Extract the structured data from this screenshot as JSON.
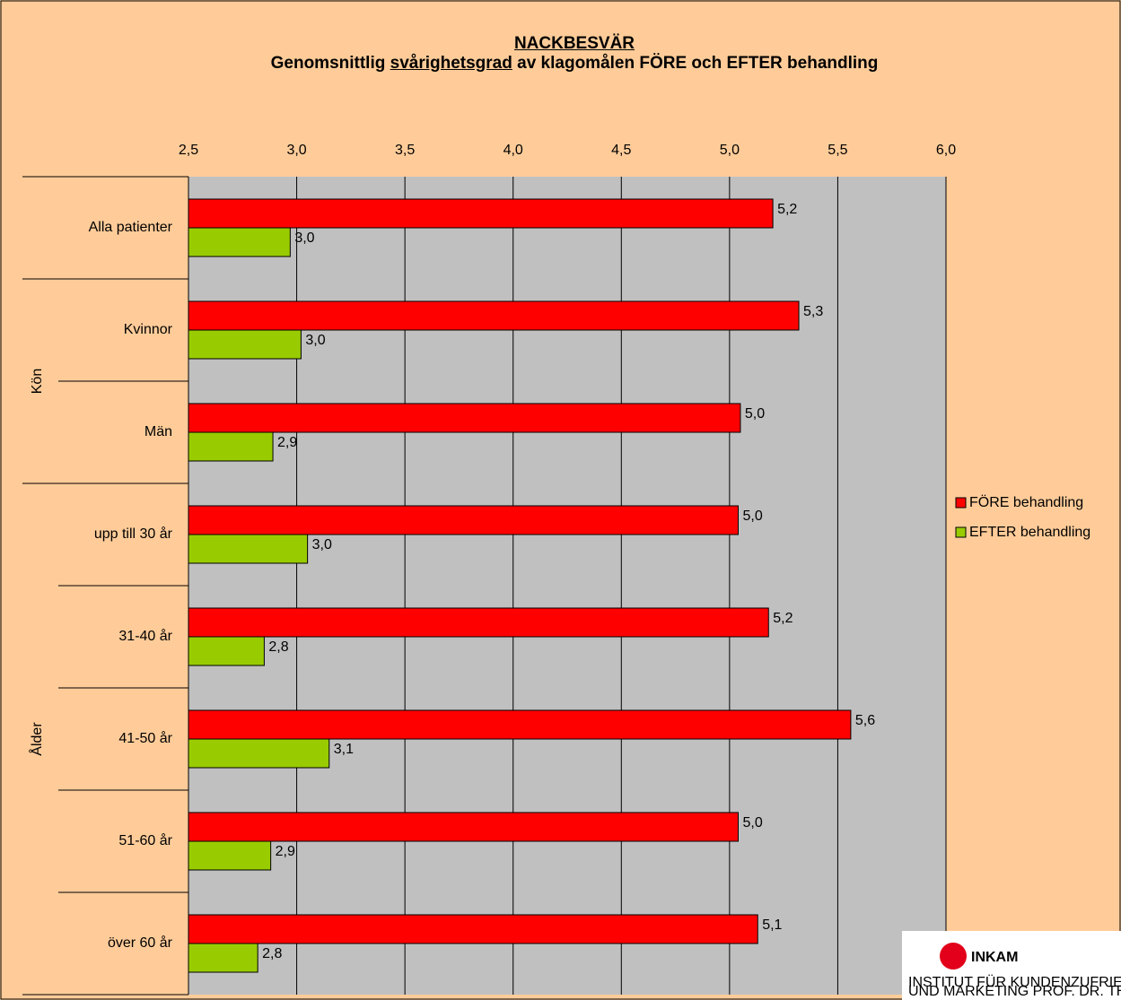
{
  "chart_data": {
    "type": "hbar",
    "title": "NACKBESVÄR",
    "subtitle": "Genomsnittlig svårighetsgrad av klagomålen FÖRE och EFTER behandling",
    "subtitle_emphasis": "svårighetsgrad",
    "categories": [
      "Alla patienter",
      "Kvinnor",
      "Män",
      "upp till 30 år",
      "31-40 år",
      "41-50 år",
      "51-60 år",
      "över 60 år"
    ],
    "category_groups": [
      null,
      "Kön",
      "Kön",
      "Ålder",
      "Ålder",
      "Ålder",
      "Ålder",
      "Ålder"
    ],
    "series": [
      {
        "name": "FÖRE behandling",
        "color": "#ff0000",
        "values": [
          5.2,
          5.32,
          5.05,
          5.04,
          5.18,
          5.56,
          5.04,
          5.13
        ],
        "value_labels": [
          "5,2",
          "5,3",
          "5,0",
          "5,0",
          "5,2",
          "5,6",
          "5,0",
          "5,1"
        ]
      },
      {
        "name": "EFTER behandling",
        "color": "#99cc00",
        "values": [
          2.97,
          3.02,
          2.89,
          3.05,
          2.85,
          3.15,
          2.88,
          2.82
        ],
        "value_labels": [
          "3,0",
          "3,0",
          "2,9",
          "3,0",
          "2,8",
          "3,1",
          "2,9",
          "2,8"
        ]
      }
    ],
    "xlim": [
      2.5,
      6.0
    ],
    "xticks": [
      {
        "value": 2.5,
        "label": "2,5"
      },
      {
        "value": 3.0,
        "label": "3,0"
      },
      {
        "value": 3.5,
        "label": "3,5"
      },
      {
        "value": 4.0,
        "label": "4,0"
      },
      {
        "value": 4.5,
        "label": "4,5"
      },
      {
        "value": 5.0,
        "label": "5,0"
      },
      {
        "value": 5.5,
        "label": "5,5"
      },
      {
        "value": 6.0,
        "label": "6,0"
      }
    ],
    "grid": true,
    "legend": "right"
  },
  "logo_name": "INKAM",
  "logo_caption": [
    "INSTITUT FÜR KUNDENZUFRIEDENHEITS-ANALYSEN",
    "UND MARKETING PROF. DR. THEIS GMBH"
  ]
}
